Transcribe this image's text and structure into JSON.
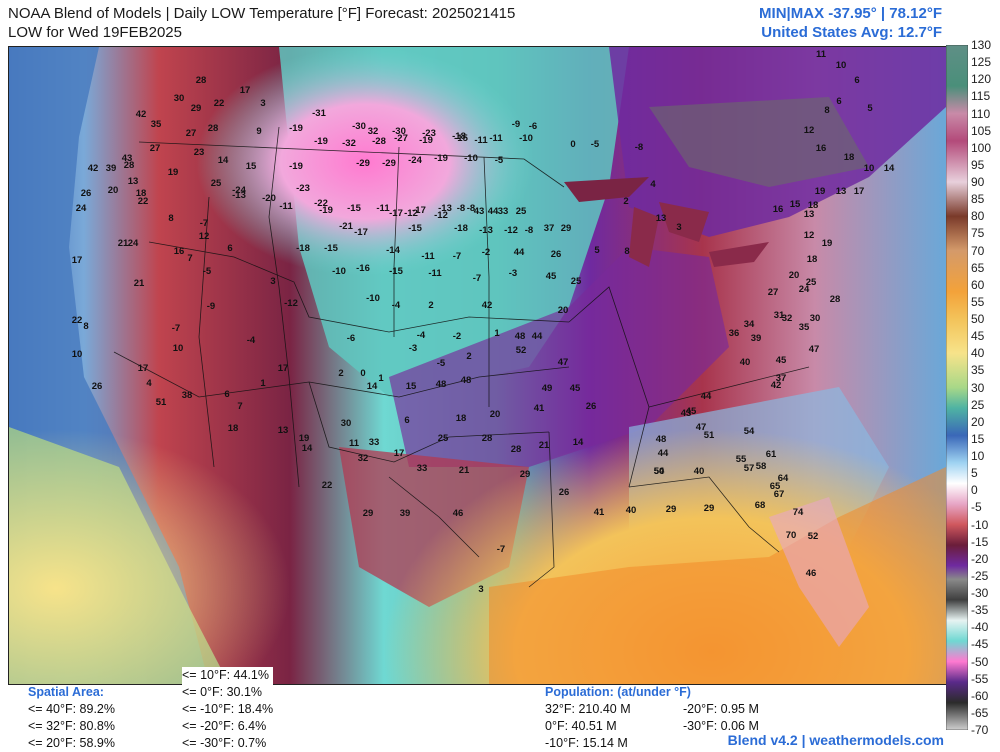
{
  "header": {
    "title_line1": "NOAA Blend of Models | Daily LOW Temperature [°F] Forecast: 2025021415",
    "title_line2": "LOW for Wed 19FEB2025",
    "minmax": "MIN|MAX -37.95°  |  78.12°F",
    "us_avg": "United States Avg: 12.7°F"
  },
  "colorbar": {
    "ticks": [
      "130",
      "125",
      "120",
      "115",
      "110",
      "105",
      "100",
      "95",
      "90",
      "85",
      "80",
      "75",
      "70",
      "65",
      "60",
      "55",
      "50",
      "45",
      "40",
      "35",
      "30",
      "25",
      "20",
      "15",
      "10",
      "5",
      "0",
      "-5",
      "-10",
      "-15",
      "-20",
      "-25",
      "-30",
      "-35",
      "-40",
      "-45",
      "-50",
      "-55",
      "-60",
      "-65",
      "-70"
    ],
    "colors": {
      "c130": "#5f8f86",
      "c115": "#b34a7a",
      "c100": "#ddbbcc",
      "c90": "#7a3a2a",
      "c85": "#c98a5e",
      "c75": "#f3c35a",
      "c60": "#f7e38a",
      "c55": "#b9e2a0",
      "c45": "#4fb3a3",
      "c40": "#3a67b8",
      "c30": "#9fd3f2",
      "c20": "#e7a6c6",
      "c10": "#c0444e",
      "c5": "#6b1d3a",
      "c0": "#6f2aa0",
      "cm10": "#3f3f3f",
      "cm15": "#8a8a8a",
      "cm20": "#e7f3f2",
      "cm30": "#6fd8d2",
      "cm40": "#ff7ad0",
      "cm50": "#5a2a8a",
      "cm60": "#2b2b2b",
      "cm70": "#cfcfcf"
    }
  },
  "map_labels": [
    {
      "t": "28"
    },
    {
      "t": "29"
    },
    {
      "t": "30"
    },
    {
      "t": "17"
    },
    {
      "t": "22"
    },
    {
      "t": "3"
    },
    {
      "t": "-31"
    },
    {
      "t": "-30"
    },
    {
      "t": "32"
    },
    {
      "t": "-30"
    },
    {
      "t": "-23"
    },
    {
      "t": "-18"
    },
    {
      "t": "-11"
    },
    {
      "t": "-9"
    },
    {
      "t": "-6"
    },
    {
      "t": "42"
    },
    {
      "t": "35"
    },
    {
      "t": "27"
    },
    {
      "t": "28"
    },
    {
      "t": "9"
    },
    {
      "t": "-19"
    },
    {
      "t": "-19"
    },
    {
      "t": "-32"
    },
    {
      "t": "-28"
    },
    {
      "t": "-27"
    },
    {
      "t": "-19"
    },
    {
      "t": "-15"
    },
    {
      "t": "-11"
    },
    {
      "t": "-10"
    },
    {
      "t": "43"
    },
    {
      "t": "27"
    },
    {
      "t": "23"
    },
    {
      "t": "14"
    },
    {
      "t": "15"
    },
    {
      "t": "-19"
    },
    {
      "t": "-29"
    },
    {
      "t": "-29"
    },
    {
      "t": "-24"
    },
    {
      "t": "-19"
    },
    {
      "t": "-10"
    },
    {
      "t": "-5"
    },
    {
      "t": "42"
    },
    {
      "t": "39"
    },
    {
      "t": "28"
    },
    {
      "t": "19"
    },
    {
      "t": "25"
    },
    {
      "t": "-24"
    },
    {
      "t": "-23"
    },
    {
      "t": "-22"
    },
    {
      "t": "-15"
    },
    {
      "t": "-11"
    },
    {
      "t": "-12"
    },
    {
      "t": "-12"
    },
    {
      "t": "-8"
    },
    {
      "t": "43"
    },
    {
      "t": "33"
    },
    {
      "t": "26"
    },
    {
      "t": "20"
    },
    {
      "t": "13"
    },
    {
      "t": "18"
    },
    {
      "t": "-13"
    },
    {
      "t": "-20"
    },
    {
      "t": "-19"
    },
    {
      "t": "-17"
    },
    {
      "t": "-17"
    },
    {
      "t": "-13"
    },
    {
      "t": "-8"
    },
    {
      "t": "44"
    },
    {
      "t": "25"
    },
    {
      "t": "24"
    },
    {
      "t": "22"
    },
    {
      "t": "8"
    },
    {
      "t": "-7"
    },
    {
      "t": "-11"
    },
    {
      "t": "-21"
    },
    {
      "t": "-17"
    },
    {
      "t": "-15"
    },
    {
      "t": "-18"
    },
    {
      "t": "-13"
    },
    {
      "t": "-12"
    },
    {
      "t": "-8"
    },
    {
      "t": "37"
    },
    {
      "t": "29"
    },
    {
      "t": "21"
    },
    {
      "t": "24"
    },
    {
      "t": "12"
    },
    {
      "t": "6"
    },
    {
      "t": "-18"
    },
    {
      "t": "-15"
    },
    {
      "t": "-14"
    },
    {
      "t": "-11"
    },
    {
      "t": "-7"
    },
    {
      "t": "-2"
    },
    {
      "t": "44"
    },
    {
      "t": "26"
    },
    {
      "t": "17"
    },
    {
      "t": "16"
    },
    {
      "t": "7"
    },
    {
      "t": "-5"
    },
    {
      "t": "-10"
    },
    {
      "t": "-16"
    },
    {
      "t": "-15"
    },
    {
      "t": "-11"
    },
    {
      "t": "-7"
    },
    {
      "t": "-3"
    },
    {
      "t": "45"
    },
    {
      "t": "25"
    },
    {
      "t": "22"
    },
    {
      "t": "21"
    },
    {
      "t": "3"
    },
    {
      "t": "-12"
    },
    {
      "t": "-10"
    },
    {
      "t": "-4"
    },
    {
      "t": "2"
    },
    {
      "t": "42"
    },
    {
      "t": "20"
    },
    {
      "t": "8"
    },
    {
      "t": "-9"
    },
    {
      "t": "-6"
    },
    {
      "t": "-4"
    },
    {
      "t": "-2"
    },
    {
      "t": "1"
    },
    {
      "t": "48"
    },
    {
      "t": "44"
    },
    {
      "t": "10"
    },
    {
      "t": "-7"
    },
    {
      "t": "-4"
    },
    {
      "t": "-3"
    },
    {
      "t": "-5"
    },
    {
      "t": "2"
    },
    {
      "t": "52"
    },
    {
      "t": "47"
    },
    {
      "t": "17"
    },
    {
      "t": "10"
    },
    {
      "t": "17"
    },
    {
      "t": "2"
    },
    {
      "t": "0"
    },
    {
      "t": "1"
    },
    {
      "t": "48"
    },
    {
      "t": "48"
    },
    {
      "t": "26"
    },
    {
      "t": "4"
    },
    {
      "t": "1"
    },
    {
      "t": "14"
    },
    {
      "t": "15"
    },
    {
      "t": "49"
    },
    {
      "t": "45"
    },
    {
      "t": "51"
    },
    {
      "t": "38"
    },
    {
      "t": "6"
    },
    {
      "t": "7"
    },
    {
      "t": "6"
    },
    {
      "t": "18"
    },
    {
      "t": "20"
    },
    {
      "t": "41"
    },
    {
      "t": "26"
    },
    {
      "t": "18"
    },
    {
      "t": "13"
    },
    {
      "t": "30"
    },
    {
      "t": "33"
    },
    {
      "t": "19"
    },
    {
      "t": "14"
    },
    {
      "t": "11"
    },
    {
      "t": "17"
    },
    {
      "t": "25"
    },
    {
      "t": "28"
    },
    {
      "t": "28"
    },
    {
      "t": "21"
    },
    {
      "t": "14"
    },
    {
      "t": "22"
    },
    {
      "t": "32"
    },
    {
      "t": "33"
    },
    {
      "t": "21"
    },
    {
      "t": "29"
    },
    {
      "t": "26"
    },
    {
      "t": "41"
    },
    {
      "t": "40"
    },
    {
      "t": "29"
    },
    {
      "t": "29"
    },
    {
      "t": "29"
    },
    {
      "t": "39"
    },
    {
      "t": "46"
    },
    {
      "t": "-7"
    },
    {
      "t": "3"
    },
    {
      "t": "0"
    },
    {
      "t": "-5"
    },
    {
      "t": "-8"
    },
    {
      "t": "4"
    },
    {
      "t": "2"
    },
    {
      "t": "13"
    },
    {
      "t": "3"
    },
    {
      "t": "8"
    },
    {
      "t": "5"
    },
    {
      "t": "11"
    },
    {
      "t": "10"
    },
    {
      "t": "6"
    },
    {
      "t": "6"
    },
    {
      "t": "5"
    },
    {
      "t": "8"
    },
    {
      "t": "12"
    },
    {
      "t": "16"
    },
    {
      "t": "18"
    },
    {
      "t": "10"
    },
    {
      "t": "14"
    },
    {
      "t": "19"
    },
    {
      "t": "13"
    },
    {
      "t": "17"
    },
    {
      "t": "18"
    },
    {
      "t": "15"
    },
    {
      "t": "13"
    },
    {
      "t": "16"
    },
    {
      "t": "12"
    },
    {
      "t": "19"
    },
    {
      "t": "18"
    },
    {
      "t": "20"
    },
    {
      "t": "25"
    },
    {
      "t": "27"
    },
    {
      "t": "24"
    },
    {
      "t": "28"
    },
    {
      "t": "30"
    },
    {
      "t": "32"
    },
    {
      "t": "34"
    },
    {
      "t": "31"
    },
    {
      "t": "35"
    },
    {
      "t": "36"
    },
    {
      "t": "39"
    },
    {
      "t": "40"
    },
    {
      "t": "45"
    },
    {
      "t": "47"
    },
    {
      "t": "42"
    },
    {
      "t": "37"
    },
    {
      "t": "44"
    },
    {
      "t": "45"
    },
    {
      "t": "43"
    },
    {
      "t": "47"
    },
    {
      "t": "48"
    },
    {
      "t": "51"
    },
    {
      "t": "54"
    },
    {
      "t": "55"
    },
    {
      "t": "57"
    },
    {
      "t": "58"
    },
    {
      "t": "61"
    },
    {
      "t": "64"
    },
    {
      "t": "65"
    },
    {
      "t": "67"
    },
    {
      "t": "68"
    },
    {
      "t": "70"
    },
    {
      "t": "74"
    },
    {
      "t": "52"
    },
    {
      "t": "46"
    },
    {
      "t": "50"
    },
    {
      "t": "54"
    },
    {
      "t": "40"
    },
    {
      "t": "44"
    }
  ],
  "footer": {
    "spatial_title": "Spatial Area:",
    "spatial_left": [
      "<= 40°F: 89.2%",
      "<= 32°F: 80.8%",
      "<= 20°F: 58.9%"
    ],
    "spatial_right": [
      "<= 10°F: 44.1%",
      "<= 0°F: 30.1%",
      "<= -10°F: 18.4%",
      "<= -20°F: 6.4%",
      "<= -30°F: 0.7%"
    ],
    "population_title": "Population: (at/under °F)",
    "population_left": [
      "32°F: 210.40 M",
      "0°F: 40.51 M",
      "-10°F: 15.14 M"
    ],
    "population_right": [
      "-20°F: 0.95 M",
      "-30°F: 0.06 M"
    ],
    "credit": "Blend v4.2 | weathermodels.com"
  }
}
